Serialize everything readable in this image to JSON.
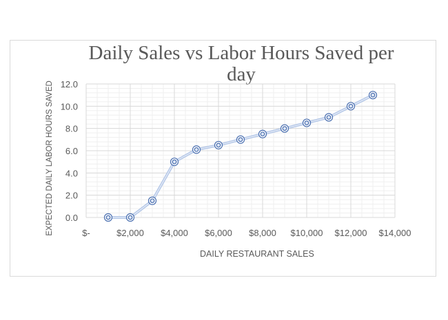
{
  "chart_data": {
    "type": "line",
    "title": "Daily Sales vs Labor Hours Saved per day",
    "xlabel": "DAILY RESTAURANT SALES",
    "ylabel": "EXPECTED DAILY LABOR HOURS SAVED",
    "x": [
      1000,
      2000,
      3000,
      4000,
      5000,
      6000,
      7000,
      8000,
      9000,
      10000,
      11000,
      12000,
      13000
    ],
    "series": [
      {
        "name": "Labor Hours Saved",
        "values": [
          0.0,
          0.0,
          1.5,
          5.0,
          6.1,
          6.5,
          7.0,
          7.5,
          8.0,
          8.5,
          9.0,
          10.0,
          11.0
        ]
      }
    ],
    "xlim": [
      0,
      14000
    ],
    "ylim": [
      0,
      12
    ],
    "x_ticks": [
      "$-",
      "$2,000",
      "$4,000",
      "$6,000",
      "$8,000",
      "$10,000",
      "$12,000",
      "$14,000"
    ],
    "y_ticks": [
      "0.0",
      "2.0",
      "4.0",
      "6.0",
      "8.0",
      "10.0",
      "12.0"
    ],
    "grid": true,
    "legend": null,
    "colors": {
      "line": "#9db3d9",
      "marker": "#4a6fb0",
      "grid_major": "#d9d9d9",
      "grid_minor": "#efefef",
      "text": "#595959"
    }
  }
}
